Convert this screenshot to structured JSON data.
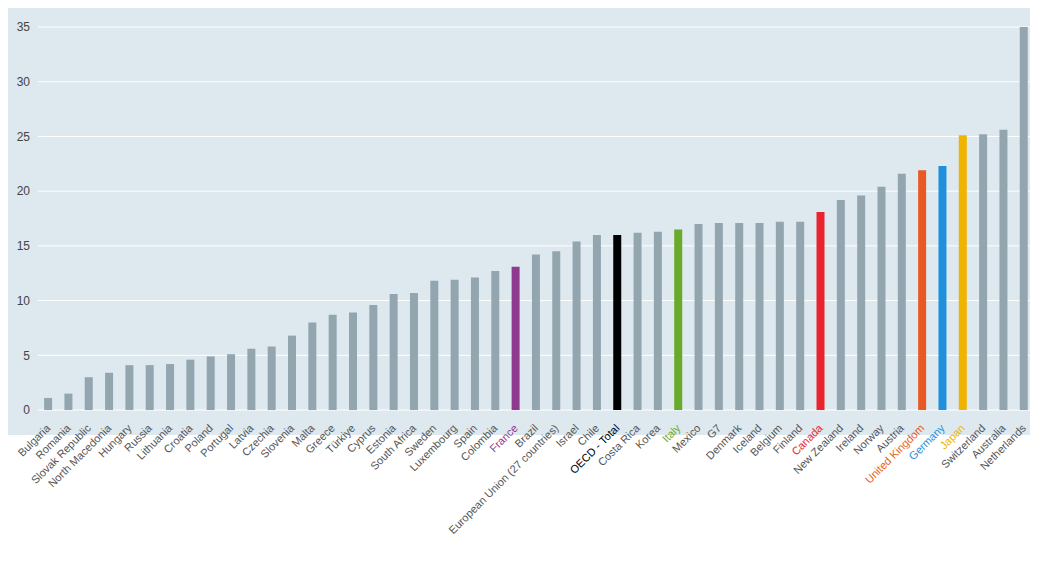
{
  "chart_data": {
    "type": "bar",
    "categories": [
      "Bulgaria",
      "Romania",
      "Slovak Republic",
      "North Macedonia",
      "Hungary",
      "Russia",
      "Lithuania",
      "Croatia",
      "Poland",
      "Portugal",
      "Latvia",
      "Czechia",
      "Slovenia",
      "Malta",
      "Greece",
      "Türkiye",
      "Cyprus",
      "Estonia",
      "South Africa",
      "Sweden",
      "Luxembourg",
      "Spain",
      "Colombia",
      "France",
      "Brazil",
      "European Union (27 countries)",
      "Israel",
      "Chile",
      "OECD - Total",
      "Costa Rica",
      "Korea",
      "Italy",
      "Mexico",
      "G7",
      "Denmark",
      "Iceland",
      "Belgium",
      "Finland",
      "Canada",
      "New Zealand",
      "Ireland",
      "Norway",
      "Austria",
      "United Kingdom",
      "Germany",
      "Japan",
      "Switzerland",
      "Australia",
      "Netherlands"
    ],
    "values": [
      1.1,
      1.5,
      3.0,
      3.4,
      4.1,
      4.1,
      4.2,
      4.6,
      4.9,
      5.1,
      5.6,
      5.8,
      6.8,
      8.0,
      8.7,
      8.9,
      9.6,
      10.6,
      10.7,
      11.8,
      11.9,
      12.1,
      12.7,
      13.1,
      14.2,
      14.5,
      15.4,
      16.0,
      16.0,
      16.2,
      16.3,
      16.5,
      17.0,
      17.1,
      17.1,
      17.1,
      17.2,
      17.2,
      18.1,
      19.2,
      19.6,
      20.4,
      21.6,
      21.9,
      22.3,
      25.1,
      25.2,
      25.6,
      35.0
    ],
    "color": "#93a6b0",
    "colors": [
      "#93a6b0",
      "#93a6b0",
      "#93a6b0",
      "#93a6b0",
      "#93a6b0",
      "#93a6b0",
      "#93a6b0",
      "#93a6b0",
      "#93a6b0",
      "#93a6b0",
      "#93a6b0",
      "#93a6b0",
      "#93a6b0",
      "#93a6b0",
      "#93a6b0",
      "#93a6b0",
      "#93a6b0",
      "#93a6b0",
      "#93a6b0",
      "#93a6b0",
      "#93a6b0",
      "#93a6b0",
      "#93a6b0",
      "#8e3a8e",
      "#93a6b0",
      "#93a6b0",
      "#93a6b0",
      "#93a6b0",
      "#000000",
      "#93a6b0",
      "#93a6b0",
      "#6aaa2a",
      "#93a6b0",
      "#93a6b0",
      "#93a6b0",
      "#93a6b0",
      "#93a6b0",
      "#93a6b0",
      "#e8242e",
      "#93a6b0",
      "#93a6b0",
      "#93a6b0",
      "#93a6b0",
      "#e85a24",
      "#1e90dc",
      "#f0b400",
      "#93a6b0",
      "#93a6b0",
      "#93a6b0"
    ],
    "ylim": [
      0,
      35
    ],
    "yticks": [
      0,
      5,
      10,
      15,
      20,
      25,
      30,
      35
    ],
    "grid": true
  }
}
